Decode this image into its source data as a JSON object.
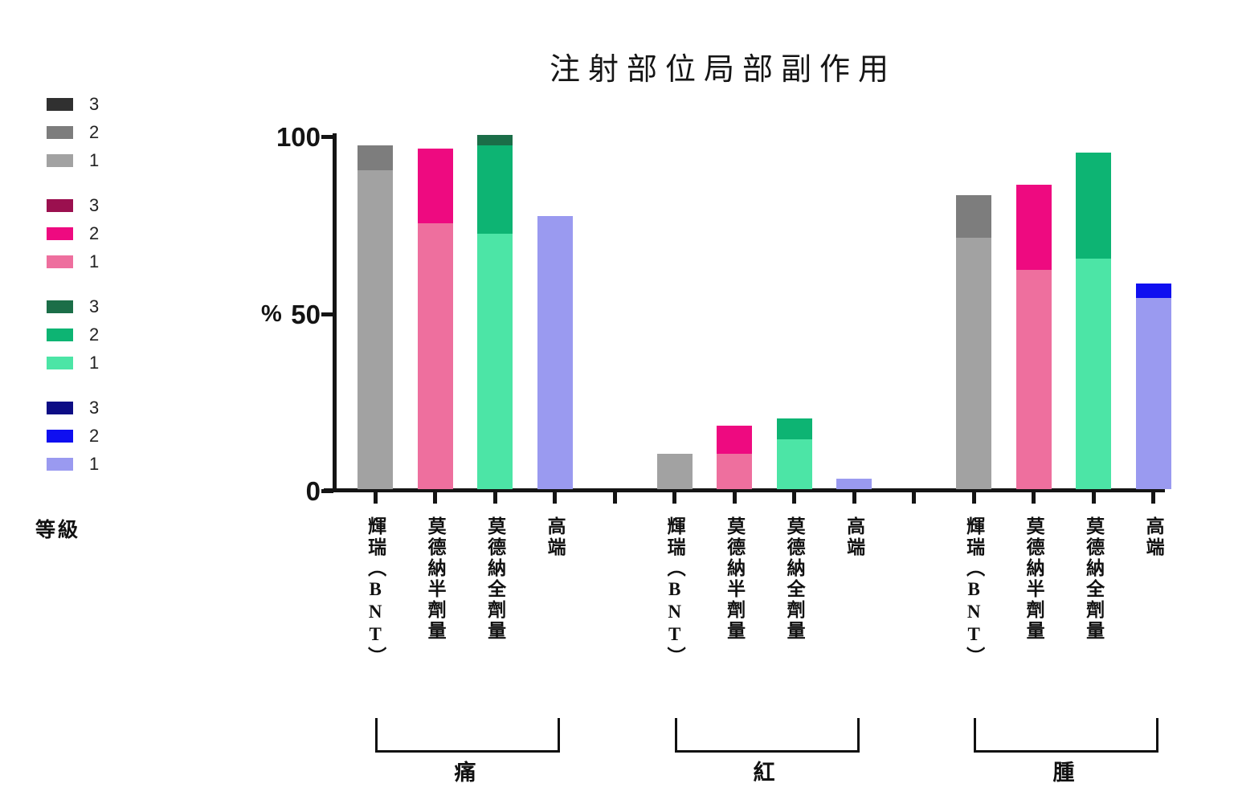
{
  "title": "注射部位局部副作用",
  "chart_data": {
    "type": "bar",
    "stacked": true,
    "title": "注射部位局部副作用",
    "ylabel": "%",
    "ylim": [
      0,
      100
    ],
    "yticks": [
      0,
      50,
      100
    ],
    "grid": false,
    "legend_position": "left",
    "legend_title": "等級",
    "grades": [
      "1",
      "2",
      "3"
    ],
    "vaccines": [
      {
        "name": "輝瑞（BNT）",
        "colors": {
          "1": "#a2a2a2",
          "2": "#7d7d7d",
          "3": "#303030"
        }
      },
      {
        "name": "莫德納半劑量",
        "colors": {
          "1": "#ee6f9e",
          "2": "#ee0a80",
          "3": "#9b104f"
        }
      },
      {
        "name": "莫德納全劑量",
        "colors": {
          "1": "#4ce5a6",
          "2": "#0db473",
          "3": "#1b6e48"
        }
      },
      {
        "name": "高端",
        "colors": {
          "1": "#9a9af0",
          "2": "#0f0ff0",
          "3": "#0d0d85"
        }
      }
    ],
    "groups": [
      {
        "label": "痛",
        "values_by_grade_1_2_3": [
          [
            90,
            7,
            0
          ],
          [
            75,
            21,
            0
          ],
          [
            72,
            25,
            3
          ],
          [
            77,
            0,
            0
          ]
        ]
      },
      {
        "label": "紅",
        "values_by_grade_1_2_3": [
          [
            10,
            0,
            0
          ],
          [
            10,
            8,
            0
          ],
          [
            14,
            6,
            0
          ],
          [
            3,
            0,
            0
          ]
        ]
      },
      {
        "label": "腫",
        "values_by_grade_1_2_3": [
          [
            71,
            12,
            0
          ],
          [
            62,
            24,
            0
          ],
          [
            65,
            30,
            0
          ],
          [
            54,
            4,
            0
          ]
        ]
      }
    ]
  }
}
